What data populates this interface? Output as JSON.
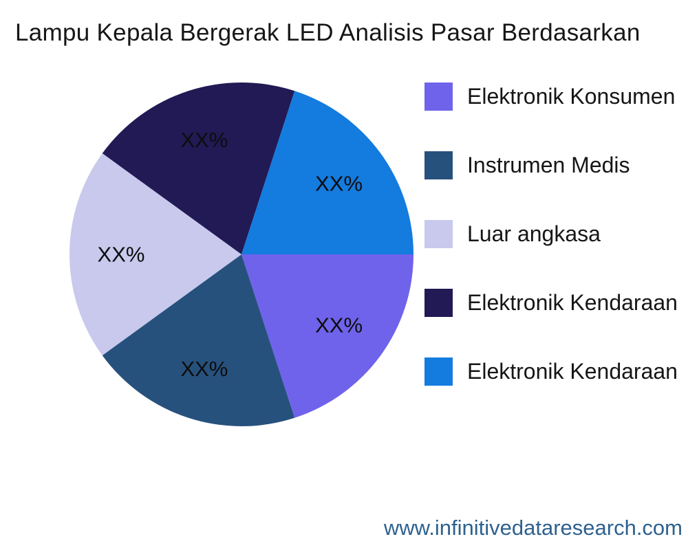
{
  "title": "Lampu Kepala Bergerak LED Analisis Pasar Berdasarkan",
  "watermark": "www.infinitivedataresearch.com",
  "colors": {
    "background": "#ffffff",
    "title_text": "#161616",
    "slice_label_text": "#0d0d0d",
    "watermark_text": "#2e618f"
  },
  "chart_data": {
    "type": "pie",
    "title": "Lampu Kepala Bergerak LED Analisis Pasar Berdasarkan",
    "legend_position": "right",
    "start_angle_deg": 0,
    "direction": "clockwise",
    "slices": [
      {
        "label": "Elektronik Konsumen",
        "value_label": "XX%",
        "fraction": 0.2,
        "color": "#6f63eb"
      },
      {
        "label": "Instrumen Medis",
        "value_label": "XX%",
        "fraction": 0.2,
        "color": "#27517d"
      },
      {
        "label": "Luar angkasa",
        "value_label": "XX%",
        "fraction": 0.2,
        "color": "#c8c9ed"
      },
      {
        "label": "Elektronik Kendaraan",
        "value_label": "XX%",
        "fraction": 0.2,
        "color": "#211a55"
      },
      {
        "label": "Elektronik Kendaraan",
        "value_label": "XX%",
        "fraction": 0.2,
        "color": "#147bdf"
      }
    ]
  }
}
